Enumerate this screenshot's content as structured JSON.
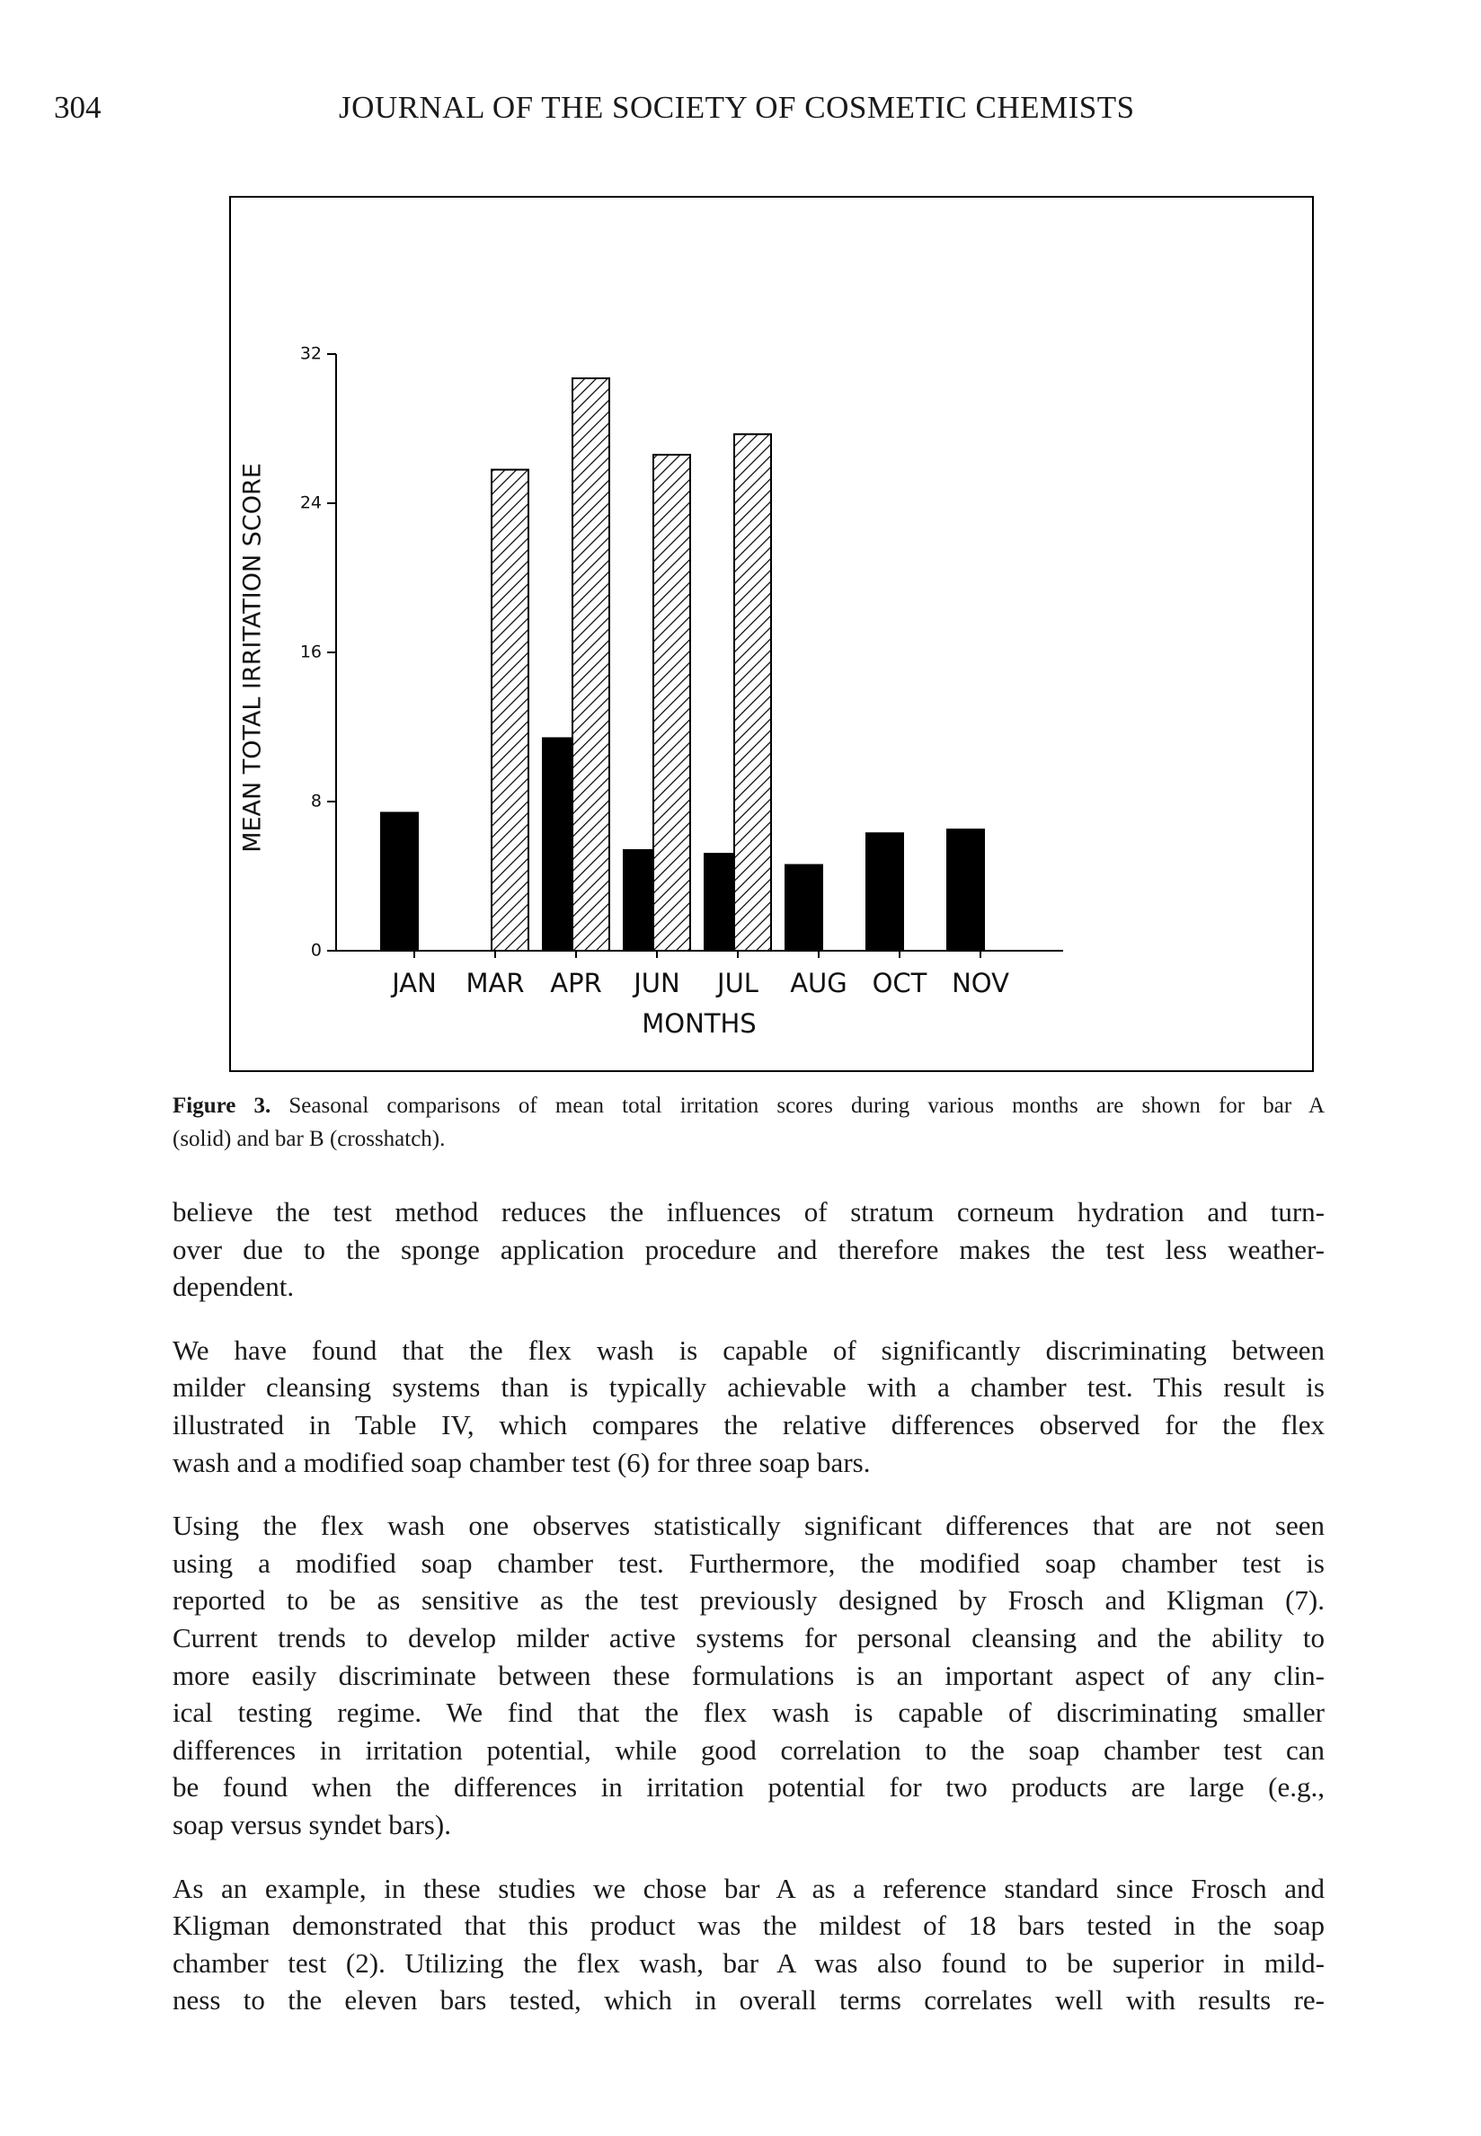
{
  "header": {
    "page_number": "304",
    "journal": "JOURNAL OF THE SOCIETY OF COSMETIC CHEMISTS"
  },
  "chart_data": {
    "type": "bar",
    "y_label": "MEAN TOTAL IRRITATION SCORE",
    "x_label": "MONTHS",
    "categories": [
      "JAN",
      "MAR",
      "APR",
      "JUN",
      "JUL",
      "AUG",
      "OCT",
      "NOV"
    ],
    "series": [
      {
        "name": "bar A",
        "color": "#000000",
        "fill": "solid",
        "values": [
          7.4,
          null,
          11.4,
          5.4,
          5.2,
          4.6,
          6.3,
          6.5
        ]
      },
      {
        "name": "bar B",
        "color": "#000000",
        "fill": "hatch",
        "values": [
          null,
          25.8,
          30.7,
          26.6,
          27.7,
          null,
          null,
          null
        ]
      }
    ],
    "ylim": [
      0,
      32
    ],
    "yticks": [
      0,
      8,
      16,
      24,
      32
    ],
    "grid": false
  },
  "caption": {
    "label": "Figure 3.",
    "lines": [
      "Seasonal comparisons of mean total irritation scores during various months are shown for bar A",
      "(solid) and bar B (crosshatch)."
    ]
  },
  "body": {
    "paragraphs": [
      [
        "believe the test method reduces the influences of stratum corneum hydration and turn-",
        "over due to the sponge application procedure and therefore makes the test less weather-",
        "dependent."
      ],
      [
        "We have found that the flex wash is capable of significantly discriminating between",
        "milder cleansing systems than is typically achievable with a chamber test. This result is",
        "illustrated in Table IV, which compares the relative differences observed for the flex",
        "wash and a modified soap chamber test (6) for three soap bars."
      ],
      [
        "Using the flex wash one observes statistically significant differences that are not seen",
        "using a modified soap chamber test. Furthermore, the modified soap chamber test is",
        "reported to be as sensitive as the test previously designed by Frosch and Kligman (7).",
        "Current trends to develop milder active systems for personal cleansing and the ability to",
        "more easily discriminate between these formulations is an important aspect of any clin-",
        "ical testing regime. We find that the flex wash is capable of discriminating smaller",
        "differences in irritation potential, while good correlation to the soap chamber test can",
        "be found when the differences in irritation potential for two products are large (e.g.,",
        "soap versus syndet bars)."
      ],
      [
        "As an example, in these studies we chose bar A as a reference standard since Frosch and",
        "Kligman demonstrated that this product was the mildest of 18 bars tested in the soap",
        "chamber test (2). Utilizing the flex wash, bar A was also found to be superior in mild-",
        "ness to the eleven bars tested, which in overall terms correlates well with results re-"
      ]
    ]
  }
}
